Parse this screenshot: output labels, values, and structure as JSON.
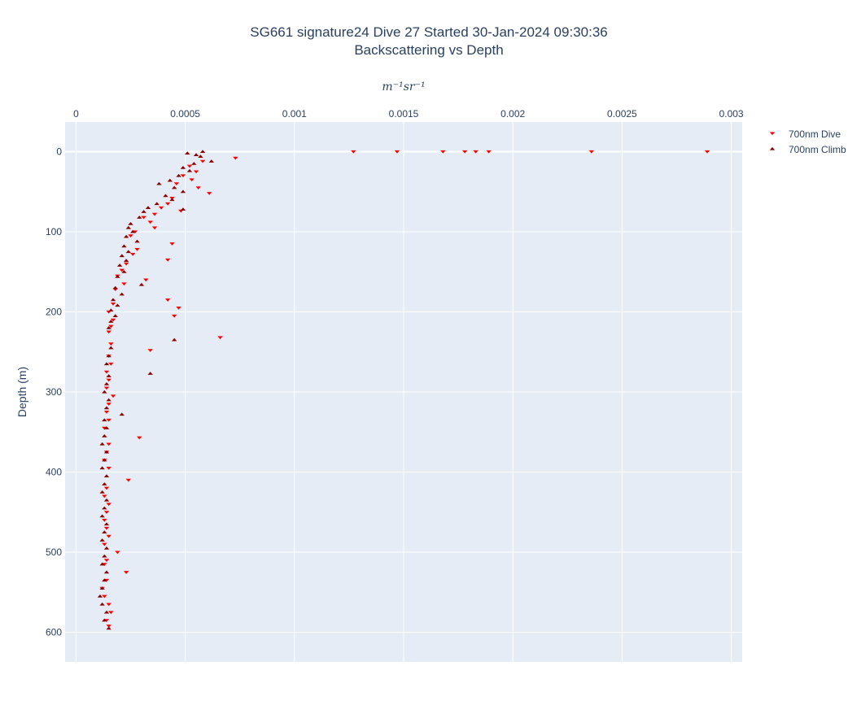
{
  "chart_data": {
    "type": "scatter",
    "title_line1": "SG661 signature24 Dive 27 Started 30-Jan-2024 09:30:36",
    "title_line2": "Backscattering vs Depth",
    "xlabel": "m⁻¹sr⁻¹",
    "ylabel": "Depth (m)",
    "xlim": [
      -5e-05,
      0.00305
    ],
    "ylim": [
      637,
      -37
    ],
    "x_axis_position": "top",
    "y_reversed": true,
    "grid": true,
    "x_ticks": [
      {
        "v": 0,
        "label": "0"
      },
      {
        "v": 0.0005,
        "label": "0.0005"
      },
      {
        "v": 0.001,
        "label": "0.001"
      },
      {
        "v": 0.0015,
        "label": "0.0015"
      },
      {
        "v": 0.002,
        "label": "0.002"
      },
      {
        "v": 0.0025,
        "label": "0.0025"
      },
      {
        "v": 0.003,
        "label": "0.003"
      }
    ],
    "y_ticks": [
      {
        "v": 0,
        "label": "0"
      },
      {
        "v": 100,
        "label": "100"
      },
      {
        "v": 200,
        "label": "200"
      },
      {
        "v": 300,
        "label": "300"
      },
      {
        "v": 400,
        "label": "400"
      },
      {
        "v": 500,
        "label": "500"
      },
      {
        "v": 600,
        "label": "600"
      }
    ],
    "legend_position": "top-right",
    "series": [
      {
        "name": "700nm Dive",
        "marker": "triangle-down",
        "color": "#ff0000",
        "points": [
          [
            0.00127,
            0
          ],
          [
            0.00147,
            0
          ],
          [
            0.00168,
            0
          ],
          [
            0.00178,
            0
          ],
          [
            0.00183,
            0
          ],
          [
            0.00189,
            0
          ],
          [
            0.00236,
            0
          ],
          [
            0.00289,
            0
          ],
          [
            0.00073,
            8
          ],
          [
            0.00058,
            12
          ],
          [
            0.00052,
            18
          ],
          [
            0.00055,
            25
          ],
          [
            0.00049,
            30
          ],
          [
            0.00053,
            35
          ],
          [
            0.00046,
            40
          ],
          [
            0.00056,
            45
          ],
          [
            0.00061,
            52
          ],
          [
            0.00044,
            58
          ],
          [
            0.00042,
            65
          ],
          [
            0.00039,
            70
          ],
          [
            0.00048,
            74
          ],
          [
            0.00036,
            78
          ],
          [
            0.00031,
            82
          ],
          [
            0.00034,
            88
          ],
          [
            0.00036,
            95
          ],
          [
            0.00027,
            100
          ],
          [
            0.00025,
            105
          ],
          [
            0.00044,
            115
          ],
          [
            0.00028,
            122
          ],
          [
            0.00026,
            128
          ],
          [
            0.00042,
            135
          ],
          [
            0.00023,
            140
          ],
          [
            0.00021,
            148
          ],
          [
            0.00019,
            155
          ],
          [
            0.00032,
            160
          ],
          [
            0.00022,
            165
          ],
          [
            0.00018,
            172
          ],
          [
            0.00042,
            185
          ],
          [
            0.00017,
            190
          ],
          [
            0.00047,
            195
          ],
          [
            0.00015,
            200
          ],
          [
            0.00045,
            205
          ],
          [
            0.00017,
            210
          ],
          [
            0.00016,
            218
          ],
          [
            0.00015,
            225
          ],
          [
            0.00066,
            232
          ],
          [
            0.00016,
            240
          ],
          [
            0.00034,
            248
          ],
          [
            0.00015,
            255
          ],
          [
            0.00016,
            265
          ],
          [
            0.00014,
            275
          ],
          [
            0.00015,
            285
          ],
          [
            0.00014,
            295
          ],
          [
            0.00017,
            305
          ],
          [
            0.00015,
            315
          ],
          [
            0.00014,
            325
          ],
          [
            0.00015,
            335
          ],
          [
            0.00013,
            345
          ],
          [
            0.00029,
            357
          ],
          [
            0.00015,
            365
          ],
          [
            0.00014,
            375
          ],
          [
            0.00013,
            385
          ],
          [
            0.00015,
            395
          ],
          [
            0.00024,
            410
          ],
          [
            0.00014,
            420
          ],
          [
            0.00013,
            430
          ],
          [
            0.00015,
            440
          ],
          [
            0.00014,
            450
          ],
          [
            0.00013,
            460
          ],
          [
            0.00014,
            470
          ],
          [
            0.00015,
            480
          ],
          [
            0.00013,
            490
          ],
          [
            0.00019,
            500
          ],
          [
            0.00014,
            510
          ],
          [
            0.00013,
            515
          ],
          [
            0.00023,
            525
          ],
          [
            0.00014,
            535
          ],
          [
            0.00012,
            545
          ],
          [
            0.00013,
            555
          ],
          [
            0.00015,
            565
          ],
          [
            0.00016,
            575
          ],
          [
            0.00014,
            585
          ],
          [
            0.00015,
            592
          ]
        ]
      },
      {
        "name": "700nm Climb",
        "marker": "triangle-up",
        "color": "#8b0000",
        "points": [
          [
            0.00058,
            0
          ],
          [
            0.00051,
            2
          ],
          [
            0.00055,
            4
          ],
          [
            0.00057,
            6
          ],
          [
            0.00062,
            12
          ],
          [
            0.00054,
            15
          ],
          [
            0.00049,
            20
          ],
          [
            0.00052,
            24
          ],
          [
            0.00047,
            30
          ],
          [
            0.00043,
            36
          ],
          [
            0.00038,
            40
          ],
          [
            0.00045,
            45
          ],
          [
            0.00049,
            50
          ],
          [
            0.00041,
            55
          ],
          [
            0.00044,
            60
          ],
          [
            0.00037,
            65
          ],
          [
            0.00033,
            70
          ],
          [
            0.00049,
            72
          ],
          [
            0.00031,
            75
          ],
          [
            0.00029,
            82
          ],
          [
            0.00025,
            90
          ],
          [
            0.00024,
            95
          ],
          [
            0.00026,
            100
          ],
          [
            0.00023,
            106
          ],
          [
            0.00028,
            112
          ],
          [
            0.00022,
            118
          ],
          [
            0.00024,
            125
          ],
          [
            0.00021,
            130
          ],
          [
            0.00023,
            136
          ],
          [
            0.0002,
            142
          ],
          [
            0.00022,
            150
          ],
          [
            0.00019,
            156
          ],
          [
            0.0003,
            166
          ],
          [
            0.00018,
            170
          ],
          [
            0.00021,
            178
          ],
          [
            0.00017,
            185
          ],
          [
            0.00019,
            192
          ],
          [
            0.00016,
            198
          ],
          [
            0.00018,
            205
          ],
          [
            0.00016,
            212
          ],
          [
            0.00015,
            220
          ],
          [
            0.00045,
            235
          ],
          [
            0.00016,
            245
          ],
          [
            0.00015,
            255
          ],
          [
            0.00014,
            265
          ],
          [
            0.00034,
            277
          ],
          [
            0.00015,
            280
          ],
          [
            0.00014,
            290
          ],
          [
            0.00013,
            300
          ],
          [
            0.00015,
            310
          ],
          [
            0.00014,
            320
          ],
          [
            0.00021,
            328
          ],
          [
            0.00013,
            335
          ],
          [
            0.00014,
            345
          ],
          [
            0.00013,
            355
          ],
          [
            0.00012,
            365
          ],
          [
            0.00014,
            375
          ],
          [
            0.00013,
            385
          ],
          [
            0.00012,
            395
          ],
          [
            0.00014,
            405
          ],
          [
            0.00013,
            415
          ],
          [
            0.00012,
            425
          ],
          [
            0.00014,
            435
          ],
          [
            0.00013,
            445
          ],
          [
            0.00012,
            455
          ],
          [
            0.00014,
            465
          ],
          [
            0.00013,
            475
          ],
          [
            0.00012,
            485
          ],
          [
            0.00014,
            495
          ],
          [
            0.00013,
            505
          ],
          [
            0.00012,
            515
          ],
          [
            0.00014,
            525
          ],
          [
            0.00013,
            535
          ],
          [
            0.00012,
            545
          ],
          [
            0.00011,
            555
          ],
          [
            0.00012,
            565
          ],
          [
            0.00014,
            575
          ],
          [
            0.00013,
            585
          ],
          [
            0.00015,
            595
          ]
        ]
      }
    ]
  }
}
